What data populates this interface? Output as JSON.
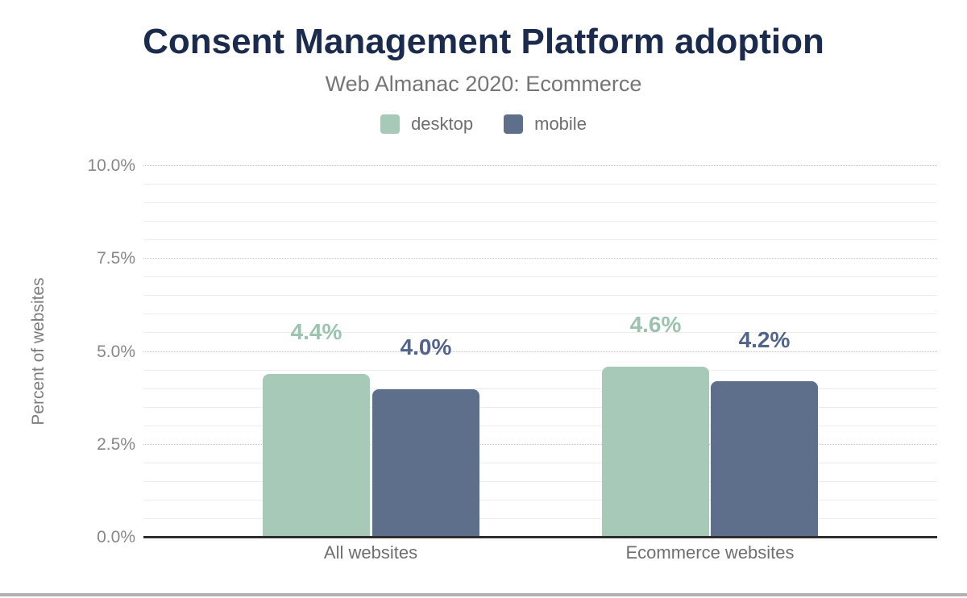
{
  "chart_data": {
    "type": "bar",
    "title": "Consent Management Platform adoption",
    "subtitle": "Web Almanac 2020: Ecommerce",
    "categories": [
      "All websites",
      "Ecommerce websites"
    ],
    "series": [
      {
        "name": "desktop",
        "color": "#a7c9b8",
        "label_color": "#9cc3b0",
        "values": [
          4.4,
          4.6
        ],
        "labels": [
          "4.4%",
          "4.6%"
        ]
      },
      {
        "name": "mobile",
        "color": "#5e6f8c",
        "label_color": "#53648b",
        "values": [
          4.0,
          4.2
        ],
        "labels": [
          "4.0%",
          "4.2%"
        ]
      }
    ],
    "xlabel": "",
    "ylabel": "Percent of websites",
    "ylim": [
      0,
      10
    ],
    "ytick_labels": [
      "0.0%",
      "2.5%",
      "5.0%",
      "7.5%",
      "10.0%"
    ],
    "ytick_values": [
      0,
      2.5,
      5,
      7.5,
      10
    ],
    "grid": {
      "major_step": 2.5,
      "minor_step": 0.5,
      "vertical": false
    },
    "legend_position": "top",
    "colors": {
      "title_text": "#1a2b4d",
      "subtitle_text": "#757575",
      "tick_text": "#878787",
      "axis_line": "#2e2e2e",
      "major_gridline": "#c4c4c4",
      "minor_gridline": "#ededed",
      "footer_strip": "#b3b1b3",
      "background": "#ffffff"
    }
  }
}
